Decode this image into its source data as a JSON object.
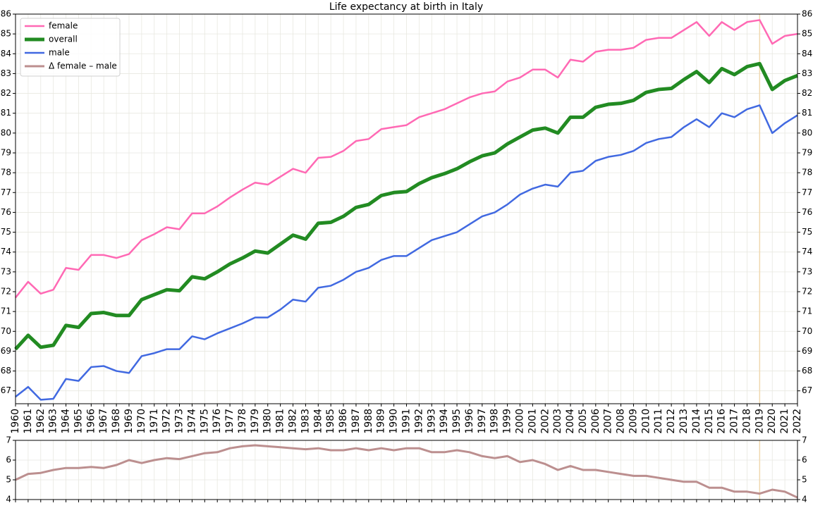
{
  "chart_data": [
    {
      "type": "line",
      "title": "Life expectancy at birth in Italy",
      "x": [
        1960,
        1961,
        1962,
        1963,
        1964,
        1965,
        1966,
        1967,
        1968,
        1969,
        1970,
        1971,
        1972,
        1973,
        1974,
        1975,
        1976,
        1977,
        1978,
        1979,
        1980,
        1981,
        1982,
        1983,
        1984,
        1985,
        1986,
        1987,
        1988,
        1989,
        1990,
        1991,
        1992,
        1993,
        1994,
        1995,
        1996,
        1997,
        1998,
        1999,
        2000,
        2001,
        2002,
        2003,
        2004,
        2005,
        2006,
        2007,
        2008,
        2009,
        2010,
        2011,
        2012,
        2013,
        2014,
        2015,
        2016,
        2017,
        2018,
        2019,
        2020,
        2021,
        2022
      ],
      "xlim": [
        1960,
        2022
      ],
      "xticks": [
        1960,
        1961,
        1962,
        1963,
        1964,
        1965,
        1966,
        1967,
        1968,
        1969,
        1970,
        1971,
        1972,
        1973,
        1974,
        1975,
        1976,
        1977,
        1978,
        1979,
        1980,
        1981,
        1982,
        1983,
        1984,
        1985,
        1986,
        1987,
        1988,
        1989,
        1990,
        1991,
        1992,
        1993,
        1994,
        1995,
        1996,
        1997,
        1998,
        1999,
        2000,
        2001,
        2002,
        2003,
        2004,
        2005,
        2006,
        2007,
        2008,
        2009,
        2010,
        2011,
        2012,
        2013,
        2014,
        2015,
        2016,
        2017,
        2018,
        2019,
        2020,
        2021,
        2022
      ],
      "ylim": [
        66.35,
        86
      ],
      "yticks": [
        67,
        68,
        69,
        70,
        71,
        72,
        73,
        74,
        75,
        76,
        77,
        78,
        79,
        80,
        81,
        82,
        83,
        84,
        85,
        86
      ],
      "grid": true,
      "legend": "upper left",
      "vline": 2019,
      "vline_color": "#f0d8b0",
      "series": [
        {
          "name": "female",
          "color": "#ff69b4",
          "width": 2.5,
          "values": [
            71.7,
            72.5,
            71.9,
            72.1,
            73.2,
            73.1,
            73.85,
            73.85,
            73.7,
            73.9,
            74.6,
            74.9,
            75.25,
            75.15,
            75.95,
            75.95,
            76.3,
            76.75,
            77.15,
            77.5,
            77.4,
            77.8,
            78.2,
            78.0,
            78.75,
            78.8,
            79.1,
            79.6,
            79.7,
            80.2,
            80.3,
            80.4,
            80.8,
            81.0,
            81.2,
            81.5,
            81.8,
            82.0,
            82.1,
            82.6,
            82.8,
            83.2,
            83.2,
            82.8,
            83.7,
            83.6,
            84.1,
            84.2,
            84.2,
            84.3,
            84.7,
            84.8,
            84.8,
            85.2,
            85.6,
            84.9,
            85.6,
            85.2,
            85.6,
            85.7,
            84.5,
            84.9,
            85.0
          ]
        },
        {
          "name": "overall",
          "color": "#228b22",
          "width": 5,
          "values": [
            69.1,
            69.8,
            69.2,
            69.3,
            70.3,
            70.2,
            70.9,
            70.95,
            70.8,
            70.8,
            71.6,
            71.85,
            72.1,
            72.05,
            72.75,
            72.65,
            73.0,
            73.4,
            73.7,
            74.05,
            73.95,
            74.4,
            74.85,
            74.65,
            75.45,
            75.5,
            75.8,
            76.25,
            76.4,
            76.85,
            77.0,
            77.05,
            77.45,
            77.75,
            77.95,
            78.2,
            78.55,
            78.85,
            79.0,
            79.45,
            79.8,
            80.15,
            80.25,
            80.0,
            80.8,
            80.8,
            81.3,
            81.45,
            81.5,
            81.65,
            82.05,
            82.2,
            82.25,
            82.7,
            83.1,
            82.55,
            83.25,
            82.95,
            83.35,
            83.5,
            82.2,
            82.65,
            82.9
          ]
        },
        {
          "name": "male",
          "color": "#4169e1",
          "width": 2.5,
          "values": [
            66.7,
            67.2,
            66.55,
            66.6,
            67.6,
            67.5,
            68.2,
            68.25,
            68.0,
            67.9,
            68.75,
            68.9,
            69.1,
            69.1,
            69.75,
            69.6,
            69.9,
            70.15,
            70.4,
            70.7,
            70.7,
            71.1,
            71.6,
            71.5,
            72.2,
            72.3,
            72.6,
            73.0,
            73.2,
            73.6,
            73.8,
            73.8,
            74.2,
            74.6,
            74.8,
            75.0,
            75.4,
            75.8,
            76.0,
            76.4,
            76.9,
            77.2,
            77.4,
            77.3,
            78.0,
            78.1,
            78.6,
            78.8,
            78.9,
            79.1,
            79.5,
            79.7,
            79.8,
            80.3,
            80.7,
            80.3,
            81.0,
            80.8,
            81.2,
            81.4,
            80.0,
            80.5,
            80.9
          ]
        }
      ]
    },
    {
      "type": "line",
      "x": [
        1960,
        1961,
        1962,
        1963,
        1964,
        1965,
        1966,
        1967,
        1968,
        1969,
        1970,
        1971,
        1972,
        1973,
        1974,
        1975,
        1976,
        1977,
        1978,
        1979,
        1980,
        1981,
        1982,
        1983,
        1984,
        1985,
        1986,
        1987,
        1988,
        1989,
        1990,
        1991,
        1992,
        1993,
        1994,
        1995,
        1996,
        1997,
        1998,
        1999,
        2000,
        2001,
        2002,
        2003,
        2004,
        2005,
        2006,
        2007,
        2008,
        2009,
        2010,
        2011,
        2012,
        2013,
        2014,
        2015,
        2016,
        2017,
        2018,
        2019,
        2020,
        2021,
        2022
      ],
      "xlim": [
        1960,
        2022
      ],
      "ylim": [
        4,
        7
      ],
      "yticks": [
        4,
        5,
        6,
        7
      ],
      "grid": true,
      "vline": 2019,
      "vline_color": "#f0d8b0",
      "series": [
        {
          "name": "Δ female – male",
          "color": "#bc8f8f",
          "width": 3,
          "values": [
            5.0,
            5.3,
            5.35,
            5.5,
            5.6,
            5.6,
            5.65,
            5.6,
            5.75,
            6.0,
            5.85,
            6.0,
            6.1,
            6.05,
            6.2,
            6.35,
            6.4,
            6.6,
            6.7,
            6.75,
            6.7,
            6.65,
            6.6,
            6.55,
            6.6,
            6.5,
            6.5,
            6.6,
            6.5,
            6.6,
            6.5,
            6.6,
            6.6,
            6.4,
            6.4,
            6.5,
            6.4,
            6.2,
            6.1,
            6.2,
            5.9,
            6.0,
            5.8,
            5.5,
            5.7,
            5.5,
            5.5,
            5.4,
            5.3,
            5.2,
            5.2,
            5.1,
            5.0,
            4.9,
            4.9,
            4.6,
            4.6,
            4.4,
            4.4,
            4.3,
            4.5,
            4.4,
            4.1
          ]
        }
      ]
    }
  ]
}
